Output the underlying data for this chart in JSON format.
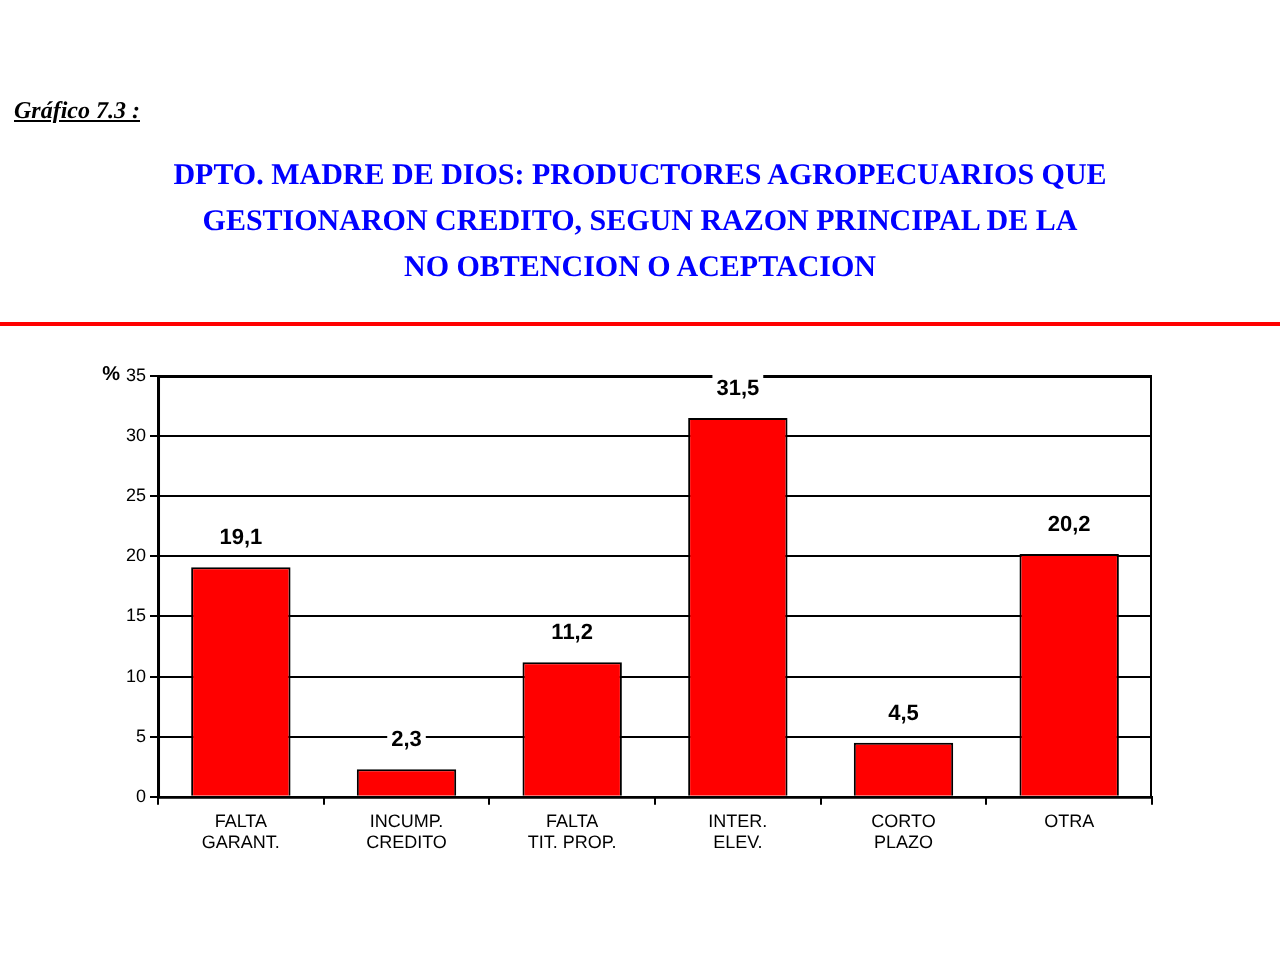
{
  "chart_data": {
    "type": "bar",
    "title": "DPTO. MADRE DE DIOS: PRODUCTORES AGROPECUARIOS QUE\nGESTIONARON CREDITO, SEGUN RAZON PRINCIPAL DE LA\nNO OBTENCION O ACEPTACION",
    "annotations": [
      "Gráfico 7.3 :"
    ],
    "ylabel": "%",
    "categories": [
      "FALTA\nGARANT.",
      "INCUMP.\nCREDITO",
      "FALTA\nTIT. PROP.",
      "INTER.\nELEV.",
      "CORTO\nPLAZO",
      "OTRA"
    ],
    "values": [
      19.1,
      2.3,
      11.2,
      31.5,
      4.5,
      20.2
    ],
    "value_labels": [
      "19,1",
      "2,3",
      "11,2",
      "31,5",
      "4,5",
      "20,2"
    ],
    "color": "#ff0000",
    "ylim": [
      0,
      35
    ],
    "yticks": [
      0,
      5,
      10,
      15,
      20,
      25,
      30,
      35
    ],
    "grid": "y"
  }
}
